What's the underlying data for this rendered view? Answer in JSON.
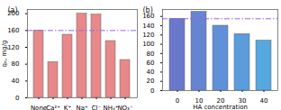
{
  "chart_data": [
    {
      "type": "bar",
      "title": "(a)",
      "y_label": "qₑ, mg/g",
      "categories": [
        "None",
        "Ca²⁺",
        "K⁺",
        "Na⁺",
        "Cl⁻",
        "NH₄⁺",
        "NO₃⁻"
      ],
      "values": [
        160,
        85,
        150,
        200,
        198,
        135,
        90
      ],
      "color": "#e8888a",
      "ylim": [
        0,
        210
      ],
      "yticks": [
        0,
        40,
        80,
        120,
        160,
        200
      ],
      "reference_line": {
        "value": 160,
        "color": "#9966dd",
        "line_style": "dashdot"
      }
    },
    {
      "type": "bar",
      "title": "(b)",
      "x_label": "HA concentration",
      "categories": [
        0,
        10,
        20,
        30,
        40
      ],
      "values": [
        155,
        170,
        140,
        122,
        108
      ],
      "colors": [
        "#6a78cc",
        "#6584d2",
        "#6090d8",
        "#5a9cdc",
        "#55a8e0"
      ],
      "ylim": [
        0,
        175
      ],
      "yticks": [
        0,
        20,
        40,
        60,
        80,
        100,
        120,
        140,
        160
      ],
      "reference_line": {
        "value": 155,
        "color": "#9966dd",
        "line_style": "dashdot"
      }
    }
  ]
}
